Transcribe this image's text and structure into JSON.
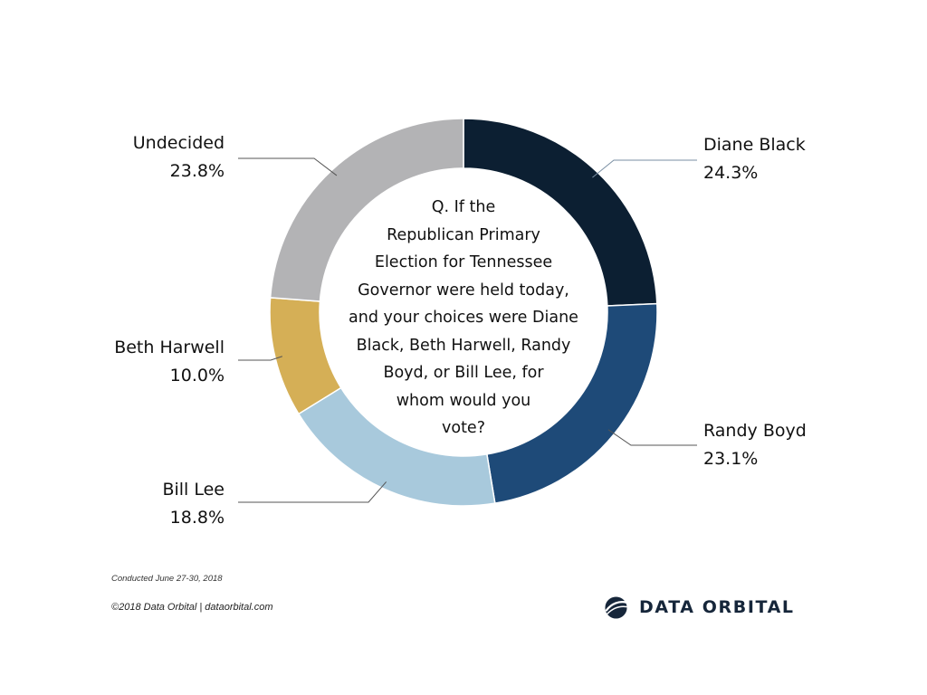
{
  "chart_data": {
    "type": "pie",
    "variant": "donut",
    "categories": [
      "Diane Black",
      "Randy Boyd",
      "Bill Lee",
      "Beth Harwell",
      "Undecided"
    ],
    "values": [
      24.3,
      23.1,
      18.8,
      10.0,
      23.8
    ],
    "value_labels": [
      "24.3%",
      "23.1%",
      "18.8%",
      "10.0%",
      "23.8%"
    ],
    "colors": [
      "#0c1f32",
      "#1e4a78",
      "#a8c9dc",
      "#d5af56",
      "#b3b3b5"
    ],
    "legend": "callout labels beside each slice",
    "center_text": [
      "Q. If the",
      "Republican Primary",
      "Election for Tennessee",
      "Governor were held today,",
      "and your choices were Diane",
      "Black, Beth Harwell, Randy",
      "Boyd, or Bill Lee, for",
      "whom would you",
      "vote?"
    ]
  },
  "footer": {
    "conducted": "Conducted June 27-30, 2018",
    "copyright": "©2018 Data Orbital | dataorbital.com"
  },
  "brand": {
    "name": "DATA ORBITAL",
    "logo_icon": "globe-orbit-icon",
    "color": "#16263a"
  }
}
